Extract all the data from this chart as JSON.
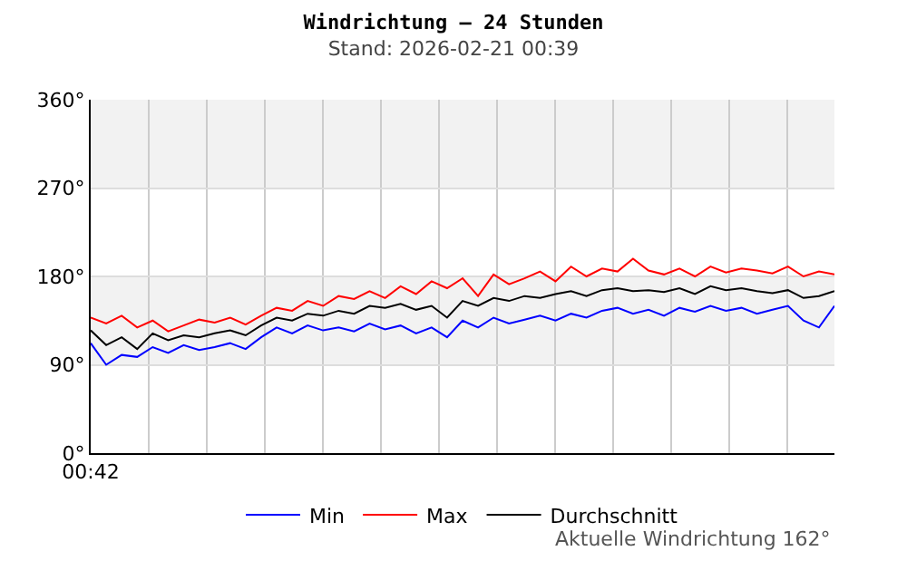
{
  "chart_data": {
    "type": "line",
    "title": "Windrichtung – 24 Stunden",
    "subtitle": "Stand: 2026-02-21 00:39",
    "categories": [
      "00:42",
      null,
      null,
      null,
      null,
      null,
      null,
      null,
      null,
      null,
      null,
      null,
      null,
      null,
      null,
      null,
      null,
      null,
      null,
      null,
      null,
      null,
      null,
      null,
      null,
      null,
      null,
      null,
      null,
      null,
      null,
      null,
      null,
      null,
      null,
      null,
      null,
      null,
      null,
      null,
      null,
      null,
      null,
      null,
      null,
      null,
      null,
      null,
      null
    ],
    "series": [
      {
        "name": "Min",
        "color": "#0000ff",
        "values": [
          112,
          90,
          100,
          98,
          108,
          102,
          110,
          105,
          108,
          112,
          106,
          118,
          128,
          122,
          130,
          125,
          128,
          124,
          132,
          126,
          130,
          122,
          128,
          118,
          135,
          128,
          138,
          132,
          136,
          140,
          135,
          142,
          138,
          145,
          148,
          142,
          146,
          140,
          148,
          144,
          150,
          145,
          148,
          142,
          146,
          150,
          135,
          128,
          150
        ]
      },
      {
        "name": "Max",
        "color": "#ff0000",
        "values": [
          138,
          132,
          140,
          128,
          135,
          124,
          130,
          136,
          133,
          138,
          131,
          140,
          148,
          145,
          155,
          150,
          160,
          157,
          165,
          158,
          170,
          162,
          175,
          168,
          178,
          160,
          182,
          172,
          178,
          185,
          175,
          190,
          180,
          188,
          185,
          198,
          186,
          182,
          188,
          180,
          190,
          184,
          188,
          186,
          183,
          190,
          180,
          185,
          182
        ]
      },
      {
        "name": "Durchschnitt",
        "color": "#000000",
        "values": [
          125,
          110,
          118,
          106,
          122,
          115,
          120,
          118,
          122,
          125,
          120,
          130,
          138,
          135,
          142,
          140,
          145,
          142,
          150,
          148,
          152,
          146,
          150,
          138,
          155,
          150,
          158,
          155,
          160,
          158,
          162,
          165,
          160,
          166,
          168,
          165,
          166,
          164,
          168,
          162,
          170,
          166,
          168,
          165,
          163,
          166,
          158,
          160,
          165
        ]
      }
    ],
    "ylim": [
      0,
      360
    ],
    "yticks": [
      {
        "value": 0,
        "label": "0°"
      },
      {
        "value": 90,
        "label": "90°"
      },
      {
        "value": 180,
        "label": "180°"
      },
      {
        "value": 270,
        "label": "270°"
      },
      {
        "value": 360,
        "label": "360°"
      }
    ],
    "bands": [
      {
        "axis": "y",
        "from": 90,
        "to": 180,
        "color": "#f2f2f2"
      },
      {
        "axis": "y",
        "from": 270,
        "to": 360,
        "color": "#f2f2f2"
      }
    ],
    "grid": true,
    "legend": "bottom",
    "marker": "none",
    "line_style": "solid",
    "annotations": [
      "Aktuelle Windrichtung 162°"
    ]
  }
}
